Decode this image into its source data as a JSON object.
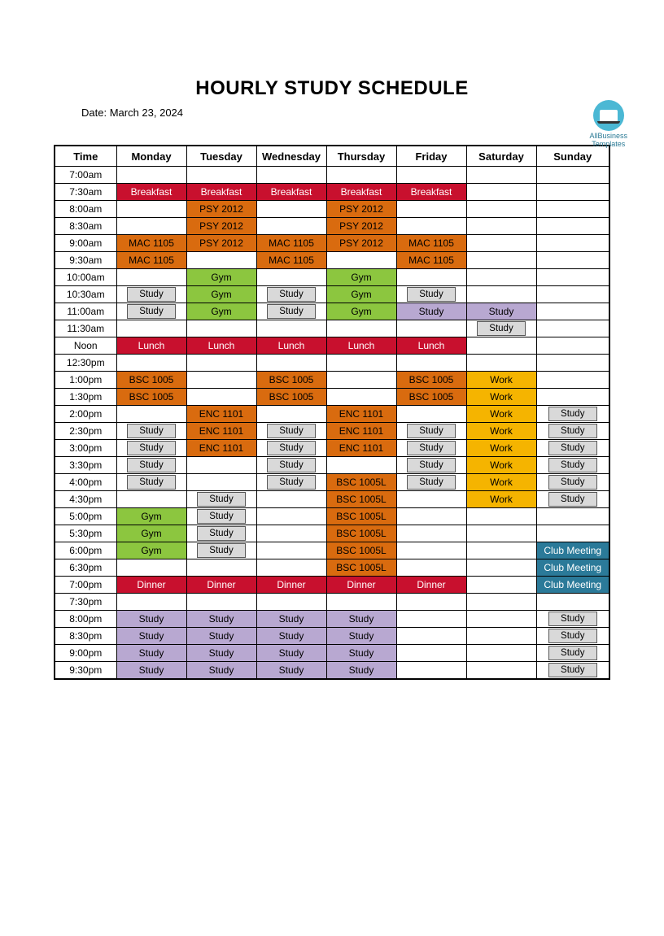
{
  "logo": {
    "line1": "AllBusiness",
    "line2": "Templates"
  },
  "title": "HOURLY STUDY SCHEDULE",
  "date_prefix": "Date: ",
  "date": "March 23, 2024",
  "colors": {
    "red": {
      "bg": "#c8102e",
      "fg": "#ffffff"
    },
    "orange": {
      "bg": "#d96b0f",
      "fg": "#000000"
    },
    "green": {
      "bg": "#8cc63f",
      "fg": "#000000"
    },
    "grey": {
      "bg": "#d9d9d9",
      "fg": "#000000"
    },
    "purple": {
      "bg": "#b8a8d1",
      "fg": "#000000"
    },
    "yellow": {
      "bg": "#f5b400",
      "fg": "#000000"
    },
    "teal": {
      "bg": "#2b7a99",
      "fg": "#ffffff"
    }
  },
  "columns": [
    "Time",
    "Monday",
    "Tuesday",
    "Wednesday",
    "Thursday",
    "Friday",
    "Saturday",
    "Sunday"
  ],
  "times": [
    "7:00am",
    "7:30am",
    "8:00am",
    "8:30am",
    "9:00am",
    "9:30am",
    "10:00am",
    "10:30am",
    "11:00am",
    "11:30am",
    "Noon",
    "12:30pm",
    "1:00pm",
    "1:30pm",
    "2:00pm",
    "2:30pm",
    "3:00pm",
    "3:30pm",
    "4:00pm",
    "4:30pm",
    "5:00pm",
    "5:30pm",
    "6:00pm",
    "6:30pm",
    "7:00pm",
    "7:30pm",
    "8:00pm",
    "8:30pm",
    "9:00pm",
    "9:30pm"
  ],
  "grid": [
    [
      null,
      null,
      null,
      null,
      null,
      null,
      null
    ],
    [
      {
        "t": "Breakfast",
        "c": "red",
        "f": 1
      },
      {
        "t": "Breakfast",
        "c": "red",
        "f": 1
      },
      {
        "t": "Breakfast",
        "c": "red",
        "f": 1
      },
      {
        "t": "Breakfast",
        "c": "red",
        "f": 1
      },
      {
        "t": "Breakfast",
        "c": "red",
        "f": 1
      },
      null,
      null
    ],
    [
      null,
      {
        "t": "PSY 2012",
        "c": "orange",
        "f": 1
      },
      null,
      {
        "t": "PSY 2012",
        "c": "orange",
        "f": 1
      },
      null,
      null,
      null
    ],
    [
      null,
      {
        "t": "PSY 2012",
        "c": "orange",
        "f": 1
      },
      null,
      {
        "t": "PSY 2012",
        "c": "orange",
        "f": 1
      },
      null,
      null,
      null
    ],
    [
      {
        "t": "MAC 1105",
        "c": "orange",
        "f": 1
      },
      {
        "t": "PSY 2012",
        "c": "orange",
        "f": 1
      },
      {
        "t": "MAC 1105",
        "c": "orange",
        "f": 1
      },
      {
        "t": "PSY 2012",
        "c": "orange",
        "f": 1
      },
      {
        "t": "MAC 1105",
        "c": "orange",
        "f": 1
      },
      null,
      null
    ],
    [
      {
        "t": "MAC 1105",
        "c": "orange",
        "f": 1
      },
      null,
      {
        "t": "MAC 1105",
        "c": "orange",
        "f": 1
      },
      null,
      {
        "t": "MAC 1105",
        "c": "orange",
        "f": 1
      },
      null,
      null
    ],
    [
      null,
      {
        "t": "Gym",
        "c": "green",
        "f": 1
      },
      null,
      {
        "t": "Gym",
        "c": "green",
        "f": 1
      },
      null,
      null,
      null
    ],
    [
      {
        "t": "Study",
        "c": "grey"
      },
      {
        "t": "Gym",
        "c": "green",
        "f": 1
      },
      {
        "t": "Study",
        "c": "grey"
      },
      {
        "t": "Gym",
        "c": "green",
        "f": 1
      },
      {
        "t": "Study",
        "c": "grey"
      },
      null,
      null
    ],
    [
      {
        "t": "Study",
        "c": "grey"
      },
      {
        "t": "Gym",
        "c": "green",
        "f": 1
      },
      {
        "t": "Study",
        "c": "grey"
      },
      {
        "t": "Gym",
        "c": "green",
        "f": 1
      },
      {
        "t": "Study",
        "c": "purple",
        "f": 1
      },
      {
        "t": "Study",
        "c": "purple",
        "f": 1
      },
      null
    ],
    [
      null,
      null,
      null,
      null,
      null,
      {
        "t": "Study",
        "c": "grey"
      },
      null
    ],
    [
      {
        "t": "Lunch",
        "c": "red",
        "f": 1
      },
      {
        "t": "Lunch",
        "c": "red",
        "f": 1
      },
      {
        "t": "Lunch",
        "c": "red",
        "f": 1
      },
      {
        "t": "Lunch",
        "c": "red",
        "f": 1
      },
      {
        "t": "Lunch",
        "c": "red",
        "f": 1
      },
      null,
      null
    ],
    [
      null,
      null,
      null,
      null,
      null,
      null,
      null
    ],
    [
      {
        "t": "BSC 1005",
        "c": "orange",
        "f": 1
      },
      null,
      {
        "t": "BSC 1005",
        "c": "orange",
        "f": 1
      },
      null,
      {
        "t": "BSC 1005",
        "c": "orange",
        "f": 1
      },
      {
        "t": "Work",
        "c": "yellow",
        "f": 1
      },
      null
    ],
    [
      {
        "t": "BSC 1005",
        "c": "orange",
        "f": 1
      },
      null,
      {
        "t": "BSC 1005",
        "c": "orange",
        "f": 1
      },
      null,
      {
        "t": "BSC 1005",
        "c": "orange",
        "f": 1
      },
      {
        "t": "Work",
        "c": "yellow",
        "f": 1
      },
      null
    ],
    [
      null,
      {
        "t": "ENC 1101",
        "c": "orange",
        "f": 1
      },
      null,
      {
        "t": "ENC 1101",
        "c": "orange",
        "f": 1
      },
      null,
      {
        "t": "Work",
        "c": "yellow",
        "f": 1
      },
      {
        "t": "Study",
        "c": "grey"
      }
    ],
    [
      {
        "t": "Study",
        "c": "grey"
      },
      {
        "t": "ENC 1101",
        "c": "orange",
        "f": 1
      },
      {
        "t": "Study",
        "c": "grey"
      },
      {
        "t": "ENC 1101",
        "c": "orange",
        "f": 1
      },
      {
        "t": "Study",
        "c": "grey"
      },
      {
        "t": "Work",
        "c": "yellow",
        "f": 1
      },
      {
        "t": "Study",
        "c": "grey"
      }
    ],
    [
      {
        "t": "Study",
        "c": "grey"
      },
      {
        "t": "ENC 1101",
        "c": "orange",
        "f": 1
      },
      {
        "t": "Study",
        "c": "grey"
      },
      {
        "t": "ENC 1101",
        "c": "orange",
        "f": 1
      },
      {
        "t": "Study",
        "c": "grey"
      },
      {
        "t": "Work",
        "c": "yellow",
        "f": 1
      },
      {
        "t": "Study",
        "c": "grey"
      }
    ],
    [
      {
        "t": "Study",
        "c": "grey"
      },
      null,
      {
        "t": "Study",
        "c": "grey"
      },
      null,
      {
        "t": "Study",
        "c": "grey"
      },
      {
        "t": "Work",
        "c": "yellow",
        "f": 1
      },
      {
        "t": "Study",
        "c": "grey"
      }
    ],
    [
      {
        "t": "Study",
        "c": "grey"
      },
      null,
      {
        "t": "Study",
        "c": "grey"
      },
      {
        "t": "BSC 1005L",
        "c": "orange",
        "f": 1
      },
      {
        "t": "Study",
        "c": "grey"
      },
      {
        "t": "Work",
        "c": "yellow",
        "f": 1
      },
      {
        "t": "Study",
        "c": "grey"
      }
    ],
    [
      null,
      {
        "t": "Study",
        "c": "grey"
      },
      null,
      {
        "t": "BSC 1005L",
        "c": "orange",
        "f": 1
      },
      null,
      {
        "t": "Work",
        "c": "yellow",
        "f": 1
      },
      {
        "t": "Study",
        "c": "grey"
      }
    ],
    [
      {
        "t": "Gym",
        "c": "green",
        "f": 1
      },
      {
        "t": "Study",
        "c": "grey"
      },
      null,
      {
        "t": "BSC 1005L",
        "c": "orange",
        "f": 1
      },
      null,
      null,
      null
    ],
    [
      {
        "t": "Gym",
        "c": "green",
        "f": 1
      },
      {
        "t": "Study",
        "c": "grey"
      },
      null,
      {
        "t": "BSC 1005L",
        "c": "orange",
        "f": 1
      },
      null,
      null,
      null
    ],
    [
      {
        "t": "Gym",
        "c": "green",
        "f": 1
      },
      {
        "t": "Study",
        "c": "grey"
      },
      null,
      {
        "t": "BSC 1005L",
        "c": "orange",
        "f": 1
      },
      null,
      null,
      {
        "t": "Club Meeting",
        "c": "teal",
        "f": 1
      }
    ],
    [
      null,
      null,
      null,
      {
        "t": "BSC 1005L",
        "c": "orange",
        "f": 1
      },
      null,
      null,
      {
        "t": "Club Meeting",
        "c": "teal",
        "f": 1
      }
    ],
    [
      {
        "t": "Dinner",
        "c": "red",
        "f": 1
      },
      {
        "t": "Dinner",
        "c": "red",
        "f": 1
      },
      {
        "t": "Dinner",
        "c": "red",
        "f": 1
      },
      {
        "t": "Dinner",
        "c": "red",
        "f": 1
      },
      {
        "t": "Dinner",
        "c": "red",
        "f": 1
      },
      null,
      {
        "t": "Club Meeting",
        "c": "teal",
        "f": 1
      }
    ],
    [
      null,
      null,
      null,
      null,
      null,
      null,
      null
    ],
    [
      {
        "t": "Study",
        "c": "purple",
        "f": 1
      },
      {
        "t": "Study",
        "c": "purple",
        "f": 1
      },
      {
        "t": "Study",
        "c": "purple",
        "f": 1
      },
      {
        "t": "Study",
        "c": "purple",
        "f": 1
      },
      null,
      null,
      {
        "t": "Study",
        "c": "grey"
      }
    ],
    [
      {
        "t": "Study",
        "c": "purple",
        "f": 1
      },
      {
        "t": "Study",
        "c": "purple",
        "f": 1
      },
      {
        "t": "Study",
        "c": "purple",
        "f": 1
      },
      {
        "t": "Study",
        "c": "purple",
        "f": 1
      },
      null,
      null,
      {
        "t": "Study",
        "c": "grey"
      }
    ],
    [
      {
        "t": "Study",
        "c": "purple",
        "f": 1
      },
      {
        "t": "Study",
        "c": "purple",
        "f": 1
      },
      {
        "t": "Study",
        "c": "purple",
        "f": 1
      },
      {
        "t": "Study",
        "c": "purple",
        "f": 1
      },
      null,
      null,
      {
        "t": "Study",
        "c": "grey"
      }
    ],
    [
      {
        "t": "Study",
        "c": "purple",
        "f": 1
      },
      {
        "t": "Study",
        "c": "purple",
        "f": 1
      },
      {
        "t": "Study",
        "c": "purple",
        "f": 1
      },
      {
        "t": "Study",
        "c": "purple",
        "f": 1
      },
      null,
      null,
      {
        "t": "Study",
        "c": "grey"
      }
    ]
  ]
}
